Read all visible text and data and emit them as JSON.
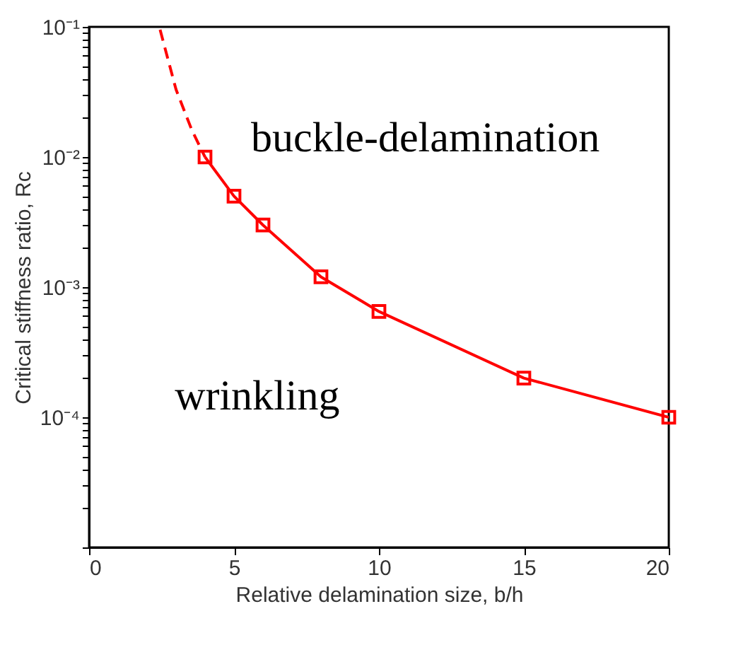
{
  "chart_data": {
    "type": "line",
    "xlabel": "Relative delamination size, b/h",
    "ylabel": "Critical stiffness ratio, Rc",
    "series": [
      {
        "x": [
          2.45,
          3,
          3.55,
          4
        ],
        "values": [
          0.095,
          0.033,
          0.016,
          0.01
        ],
        "color": "#ff0000",
        "line_style": "dashed",
        "marker": "none"
      },
      {
        "x": [
          4,
          5,
          6,
          8,
          10,
          15,
          20
        ],
        "values": [
          0.01,
          0.005,
          0.003,
          0.0012,
          0.00065,
          0.0002,
          0.0001
        ],
        "color": "#ff0000",
        "line_style": "solid",
        "marker": "square"
      }
    ],
    "log": "y",
    "xlim": [
      0,
      20
    ],
    "xticks": [
      0,
      5,
      10,
      15,
      20
    ],
    "ylim": [
      1e-05,
      0.1
    ],
    "yticks": [
      {
        "value": 1e-05,
        "label": null
      },
      {
        "value": 2e-05,
        "label": null
      },
      {
        "value": 3e-05,
        "label": null
      },
      {
        "value": 4e-05,
        "label": null
      },
      {
        "value": 5e-05,
        "label": null
      },
      {
        "value": 6e-05,
        "label": null
      },
      {
        "value": 7e-05,
        "label": null
      },
      {
        "value": 8e-05,
        "label": null
      },
      {
        "value": 9e-05,
        "label": null
      },
      {
        "value": 0.0001,
        "label": "10⁻⁴"
      },
      {
        "value": 0.0002,
        "label": null
      },
      {
        "value": 0.0003,
        "label": null
      },
      {
        "value": 0.0004,
        "label": null
      },
      {
        "value": 0.0005,
        "label": null
      },
      {
        "value": 0.0006,
        "label": null
      },
      {
        "value": 0.0007,
        "label": null
      },
      {
        "value": 0.0008,
        "label": null
      },
      {
        "value": 0.0009,
        "label": null
      },
      {
        "value": 0.001,
        "label": "10⁻³"
      },
      {
        "value": 0.002,
        "label": null
      },
      {
        "value": 0.003,
        "label": null
      },
      {
        "value": 0.004,
        "label": null
      },
      {
        "value": 0.005,
        "label": null
      },
      {
        "value": 0.006,
        "label": null
      },
      {
        "value": 0.007,
        "label": null
      },
      {
        "value": 0.008,
        "label": null
      },
      {
        "value": 0.009,
        "label": null
      },
      {
        "value": 0.01,
        "label": "10⁻²"
      },
      {
        "value": 0.02,
        "label": null
      },
      {
        "value": 0.03,
        "label": null
      },
      {
        "value": 0.04,
        "label": null
      },
      {
        "value": 0.05,
        "label": null
      },
      {
        "value": 0.06,
        "label": null
      },
      {
        "value": 0.07,
        "label": null
      },
      {
        "value": 0.08,
        "label": null
      },
      {
        "value": 0.09,
        "label": null
      },
      {
        "value": 0.1,
        "label": "10⁻¹"
      }
    ],
    "annotations": [
      "buckle-delamination",
      "wrinkling"
    ],
    "grid": false
  }
}
